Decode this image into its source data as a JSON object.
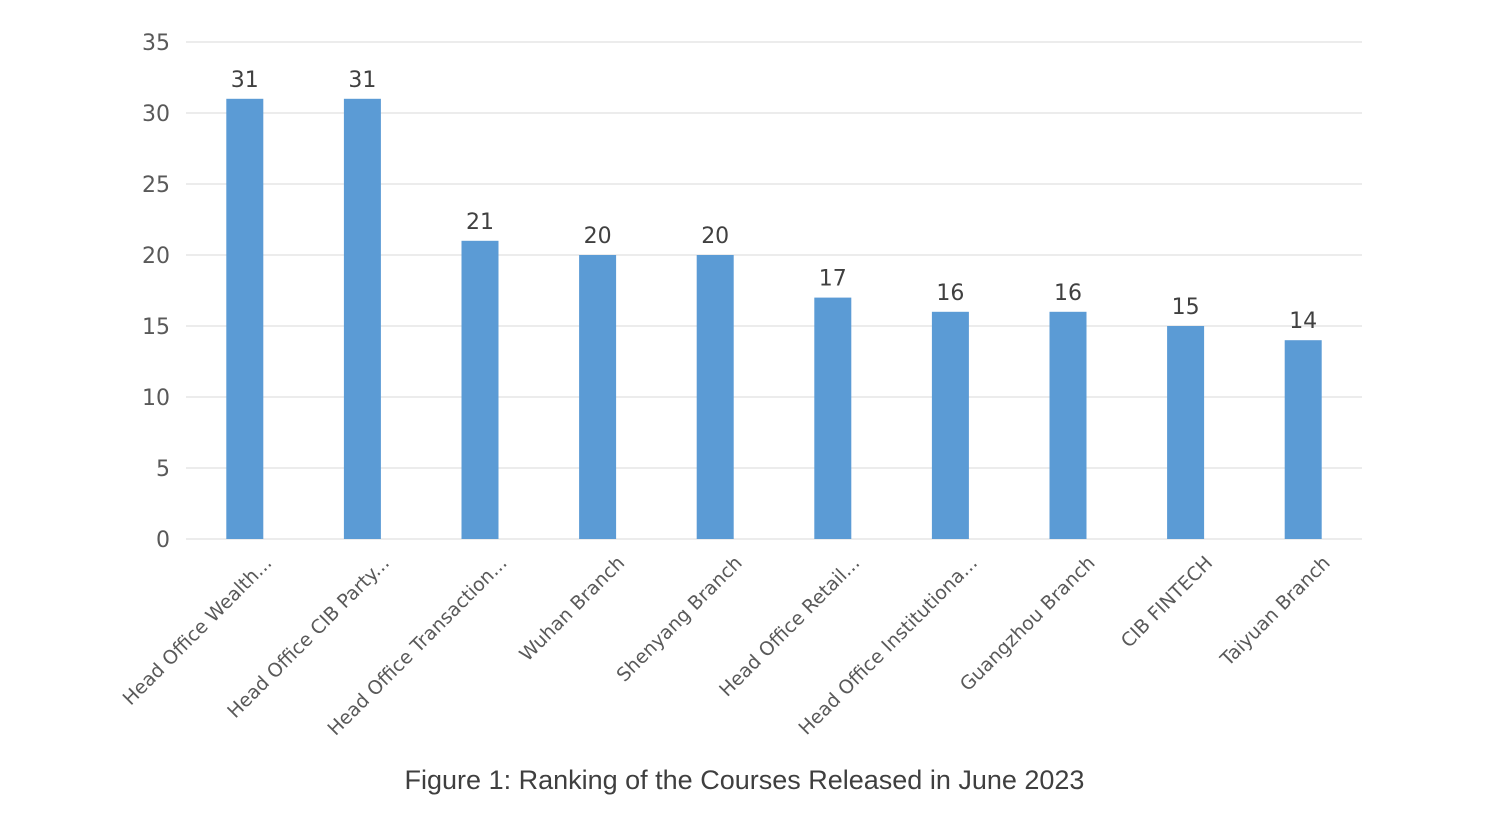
{
  "caption": "Figure 1: Ranking of the Courses Released in June 2023",
  "chart_data": {
    "type": "bar",
    "title": "",
    "xlabel": "",
    "ylabel": "",
    "ylim": [
      0,
      35
    ],
    "yticks": [
      0,
      5,
      10,
      15,
      20,
      25,
      30,
      35
    ],
    "grid": true,
    "bar_color": "#5b9bd5",
    "categories": [
      "Head Office Wealth...",
      "Head Office CIB Party...",
      "Head Office Transaction...",
      "Wuhan Branch",
      "Shenyang Branch",
      "Head Office Retail...",
      "Head Office Institutiona...",
      "Guangzhou Branch",
      "CIB FINTECH",
      "Taiyuan Branch"
    ],
    "values": [
      31,
      31,
      21,
      20,
      20,
      17,
      16,
      16,
      15,
      14
    ]
  }
}
